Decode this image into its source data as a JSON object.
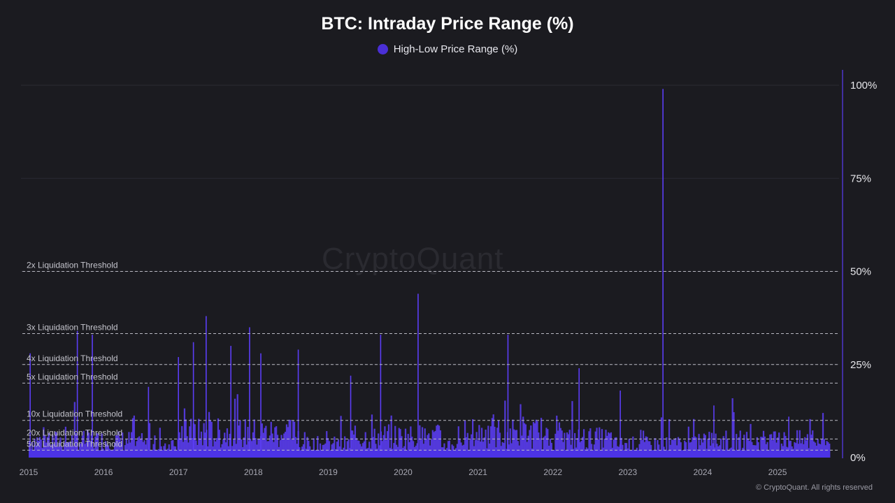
{
  "chart_data": {
    "type": "bar",
    "title": "BTC: Intraday Price Range (%)",
    "legend": [
      {
        "name": "High-Low Price Range (%)",
        "color": "#4a2fd6"
      }
    ],
    "series": [
      {
        "name": "High-Low Price Range (%)",
        "color": "#5b3df5"
      }
    ],
    "x_axis": {
      "ticks": [
        "2015",
        "2016",
        "2017",
        "2018",
        "2019",
        "2020",
        "2021",
        "2022",
        "2023",
        "2024",
        "2025"
      ],
      "range": [
        2015.0,
        2025.7
      ]
    },
    "y_axis": {
      "position": "right",
      "ticks": [
        "0%",
        "25%",
        "50%",
        "75%",
        "100%"
      ],
      "range": [
        0,
        100
      ]
    },
    "thresholds": [
      {
        "label": "2x Liquidation Threshold",
        "value": 50
      },
      {
        "label": "3x Liquidation Threshold",
        "value": 33.3
      },
      {
        "label": "4x Liquidation Threshold",
        "value": 25
      },
      {
        "label": "5x Liquidation Threshold",
        "value": 20
      },
      {
        "label": "10x Liquidation Threshold",
        "value": 10
      },
      {
        "label": "20x Liquidation Threshold",
        "value": 5
      },
      {
        "label": "50x Liquidation Threshold",
        "value": 2
      }
    ],
    "peaks": [
      {
        "x": 2015.02,
        "y": 28
      },
      {
        "x": 2015.65,
        "y": 34
      },
      {
        "x": 2015.85,
        "y": 33
      },
      {
        "x": 2016.6,
        "y": 19
      },
      {
        "x": 2017.0,
        "y": 27
      },
      {
        "x": 2017.2,
        "y": 31
      },
      {
        "x": 2017.37,
        "y": 38
      },
      {
        "x": 2017.7,
        "y": 30
      },
      {
        "x": 2017.95,
        "y": 35
      },
      {
        "x": 2018.1,
        "y": 28
      },
      {
        "x": 2018.6,
        "y": 29
      },
      {
        "x": 2019.3,
        "y": 22
      },
      {
        "x": 2019.7,
        "y": 33
      },
      {
        "x": 2020.2,
        "y": 44
      },
      {
        "x": 2021.4,
        "y": 33
      },
      {
        "x": 2022.35,
        "y": 24
      },
      {
        "x": 2022.9,
        "y": 18
      },
      {
        "x": 2023.47,
        "y": 99
      },
      {
        "x": 2024.15,
        "y": 14
      },
      {
        "x": 2025.15,
        "y": 11
      }
    ],
    "grid": true
  },
  "watermark": "CryptoQuant",
  "copyright": "© CryptoQuant. All rights reserved"
}
